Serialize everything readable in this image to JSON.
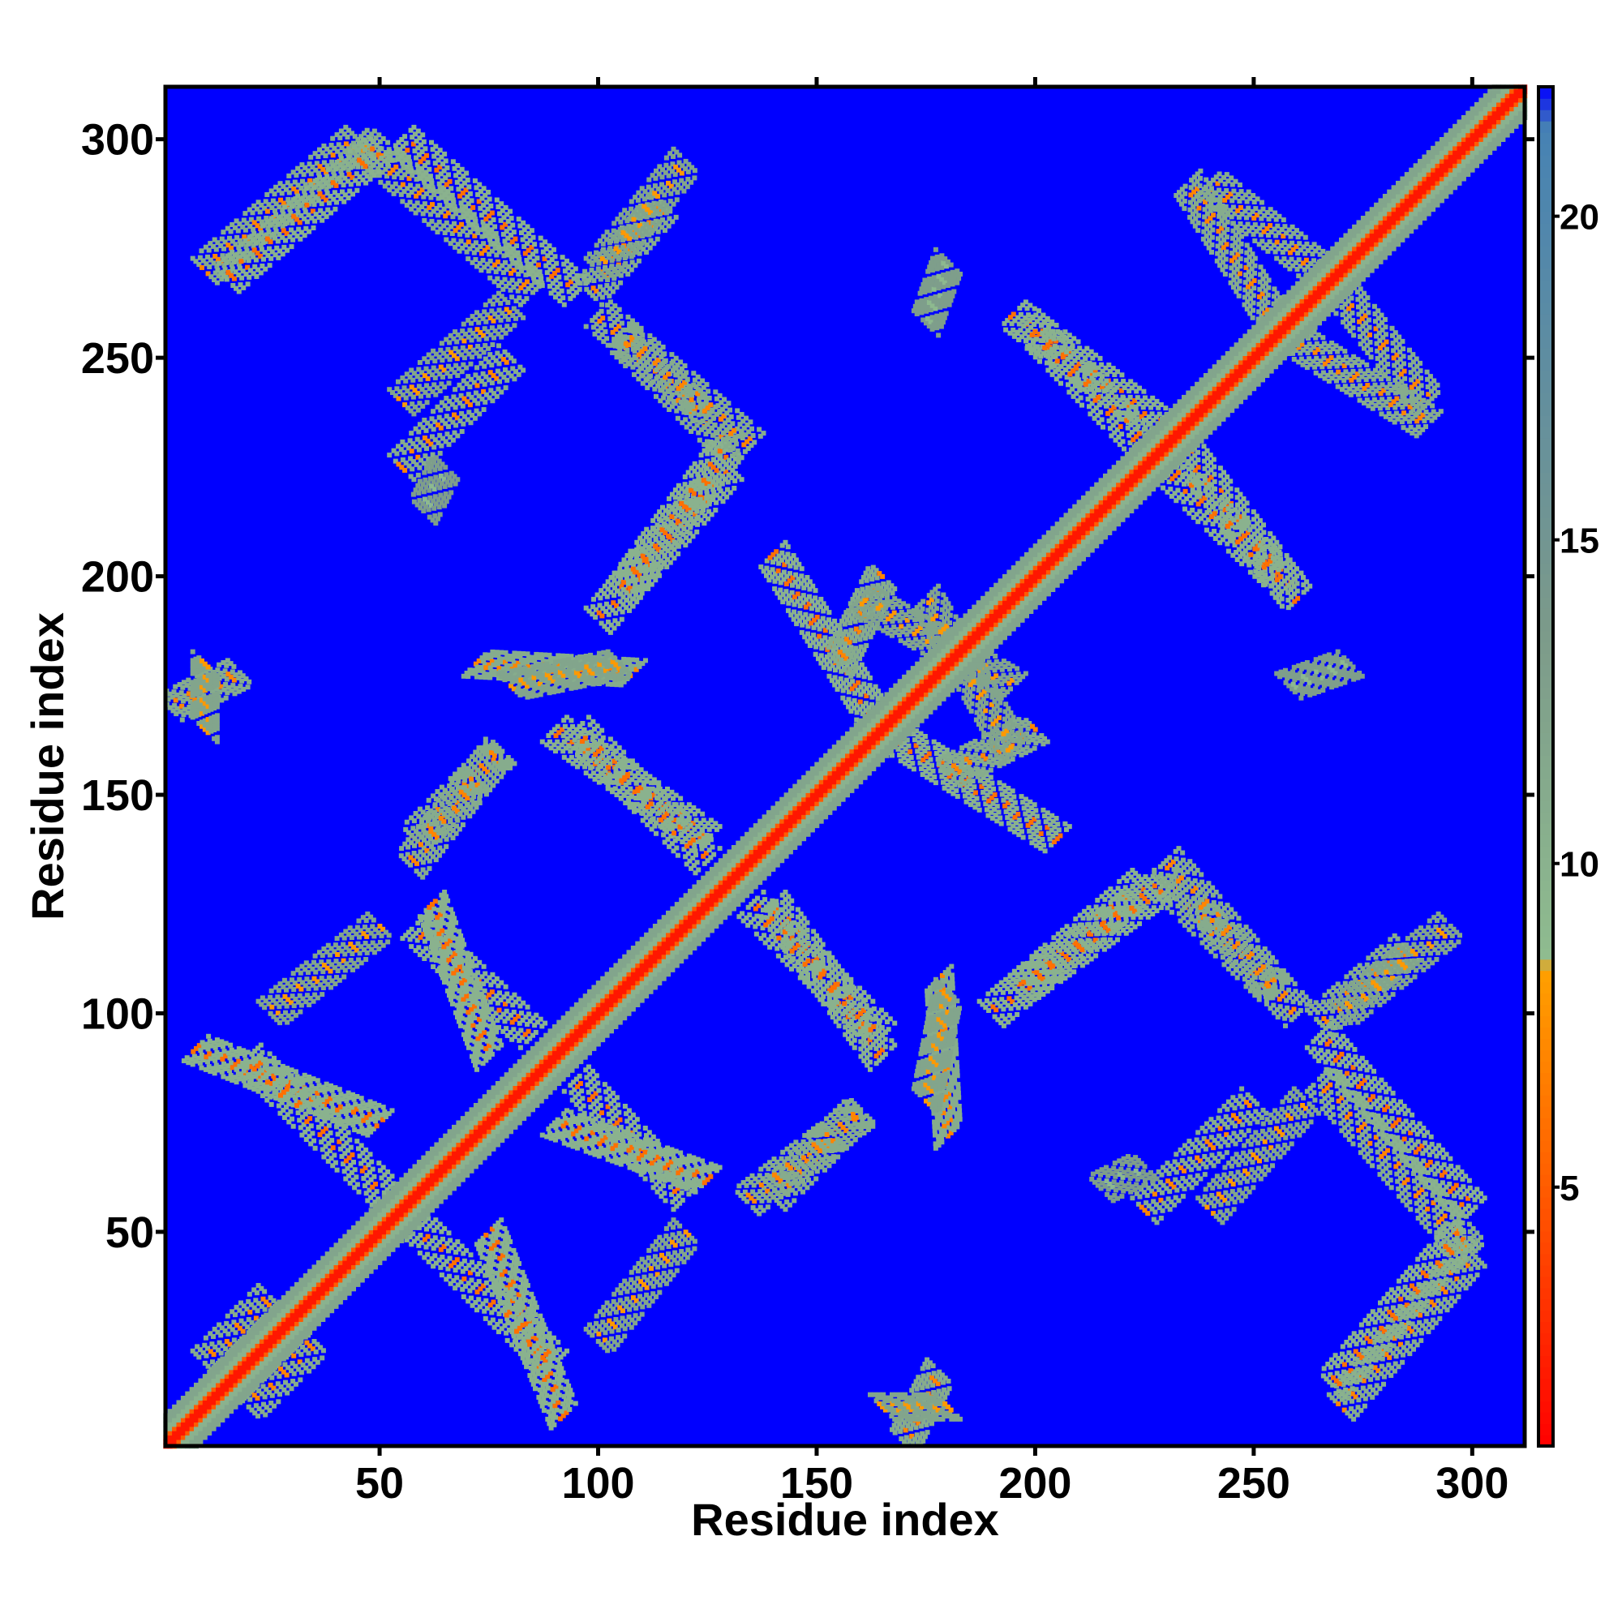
{
  "chart_data": {
    "type": "heatmap",
    "title": "",
    "xlabel": "Residue index",
    "ylabel": "Residue index",
    "xlim": [
      1,
      312
    ],
    "ylim": [
      1,
      312
    ],
    "x_ticks": [
      50,
      100,
      150,
      200,
      250,
      300
    ],
    "y_ticks": [
      50,
      100,
      150,
      200,
      250,
      300
    ],
    "colorbar": {
      "range": [
        1,
        22
      ],
      "ticks": [
        5,
        10,
        15,
        20
      ],
      "colors": [
        "#ff0000",
        "#ff6000",
        "#ffa000",
        "#8fbc8f",
        "#7c9a8a",
        "#4682b4",
        "#0000ff"
      ],
      "stops": [
        0.0,
        0.2,
        0.35,
        0.36,
        0.6,
        0.97,
        1.0
      ]
    },
    "background_color": "#0000ff",
    "diagonal": {
      "start": 1,
      "end": 312,
      "core_value": 2,
      "halo_value": 10
    },
    "contact_bands": [
      {
        "x": [
          10,
          45
        ],
        "y": [
          270,
          300
        ],
        "value": 11
      },
      {
        "x": [
          45,
          85
        ],
        "y": [
          300,
          265
        ],
        "value": 11
      },
      {
        "x": [
          98,
          115
        ],
        "y": [
          265,
          285
        ],
        "value": 11
      },
      {
        "x": [
          55,
          80
        ],
        "y": [
          225,
          250
        ],
        "value": 11
      },
      {
        "x": [
          105,
          130
        ],
        "y": [
          255,
          230
        ],
        "value": 11
      },
      {
        "x": [
          100,
          130
        ],
        "y": [
          190,
          225
        ],
        "value": 10
      },
      {
        "x": [
          72,
          108
        ],
        "y": [
          180,
          178
        ],
        "value": 11
      },
      {
        "x": [
          2,
          18
        ],
        "y": [
          170,
          178
        ],
        "value": 11
      },
      {
        "x": [
          90,
          125
        ],
        "y": [
          165,
          140
        ],
        "value": 10
      },
      {
        "x": [
          58,
          78
        ],
        "y": [
          140,
          160
        ],
        "value": 11
      },
      {
        "x": [
          58,
          85
        ],
        "y": [
          120,
          95
        ],
        "value": 10
      },
      {
        "x": [
          25,
          50
        ],
        "y": [
          100,
          120
        ],
        "value": 12
      },
      {
        "x": [
          8,
          50
        ],
        "y": [
          92,
          75
        ],
        "value": 10
      },
      {
        "x": [
          90,
          125
        ],
        "y": [
          75,
          62
        ],
        "value": 10
      },
      {
        "x": [
          134,
          160
        ],
        "y": [
          57,
          77
        ],
        "value": 11
      },
      {
        "x": [
          55,
          90
        ],
        "y": [
          55,
          20
        ],
        "value": 10
      },
      {
        "x": [
          10,
          25
        ],
        "y": [
          20,
          35
        ],
        "value": 11
      },
      {
        "x": [
          135,
          165
        ],
        "y": [
          125,
          95
        ],
        "value": 10
      },
      {
        "x": [
          140,
          165
        ],
        "y": [
          205,
          165
        ],
        "value": 10
      },
      {
        "x": [
          180,
          200
        ],
        "y": [
          155,
          165
        ],
        "value": 11
      },
      {
        "x": [
          160,
          195
        ],
        "y": [
          195,
          175
        ],
        "value": 12
      },
      {
        "x": [
          175,
          180
        ],
        "y": [
          80,
          105
        ],
        "value": 12
      },
      {
        "x": [
          196,
          230
        ],
        "y": [
          105,
          130
        ],
        "value": 10
      },
      {
        "x": [
          230,
          260
        ],
        "y": [
          135,
          100
        ],
        "value": 11
      },
      {
        "x": [
          195,
          228
        ],
        "y": [
          260,
          235
        ],
        "value": 10
      },
      {
        "x": [
          230,
          258
        ],
        "y": [
          225,
          198
        ],
        "value": 10
      },
      {
        "x": [
          240,
          265
        ],
        "y": [
          290,
          270
        ],
        "value": 11
      },
      {
        "x": [
          258,
          290
        ],
        "y": [
          255,
          235
        ],
        "value": 11
      },
      {
        "x": [
          265,
          300
        ],
        "y": [
          95,
          55
        ],
        "value": 10
      },
      {
        "x": [
          268,
          298
        ],
        "y": [
          15,
          50
        ],
        "value": 10
      },
      {
        "x": [
          240,
          262
        ],
        "y": [
          55,
          80
        ],
        "value": 12
      },
      {
        "x": [
          270,
          295
        ],
        "y": [
          100,
          120
        ],
        "value": 12
      },
      {
        "x": [
          258,
          272
        ],
        "y": [
          175,
          180
        ],
        "value": 13
      },
      {
        "x": [
          165,
          180
        ],
        "y": [
          10,
          10
        ],
        "value": 12
      },
      {
        "x": [
          215,
          225
        ],
        "y": [
          60,
          65
        ],
        "value": 13
      }
    ]
  }
}
